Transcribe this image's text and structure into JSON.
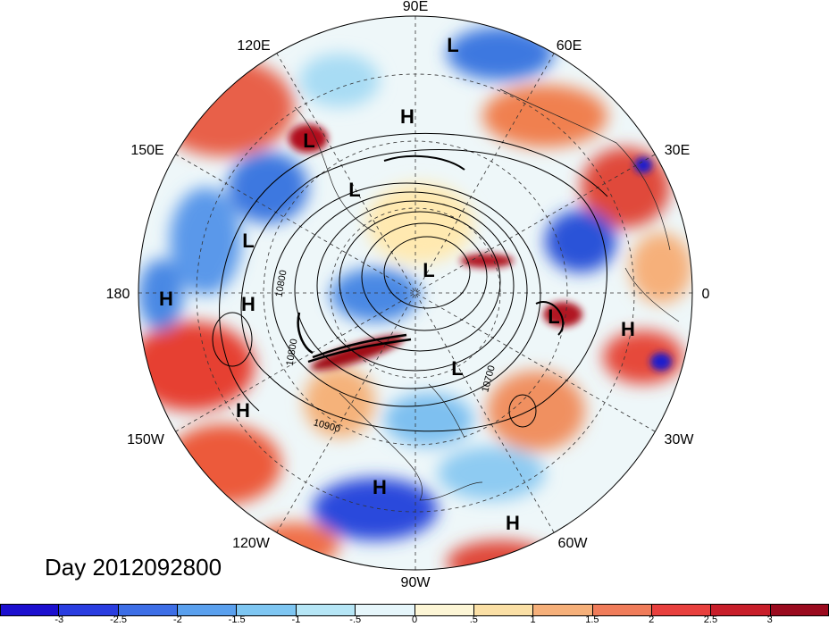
{
  "map": {
    "projection": "north-polar-stereographic",
    "lon_labels": [
      {
        "text": "90E",
        "lon": 90
      },
      {
        "text": "60E",
        "lon": 60
      },
      {
        "text": "30E",
        "lon": 30
      },
      {
        "text": "0",
        "lon": 0
      },
      {
        "text": "30W",
        "lon": -30
      },
      {
        "text": "60W",
        "lon": -60
      },
      {
        "text": "90W",
        "lon": -90
      },
      {
        "text": "120W",
        "lon": -120
      },
      {
        "text": "150W",
        "lon": -150
      },
      {
        "text": "180",
        "lon": 180
      },
      {
        "text": "150E",
        "lon": 150
      },
      {
        "text": "120E",
        "lon": 120
      }
    ],
    "pressure_centers": [
      "L",
      "H",
      "L",
      "L",
      "L",
      "H",
      "H",
      "L",
      "L",
      "H",
      "L",
      "H",
      "H",
      "H"
    ],
    "contour_labels": [
      "10800",
      "10800",
      "10900",
      "10700"
    ],
    "day_label": "Day 2012092800",
    "colors": {
      "anomaly_negative_strong": "#1a1acc",
      "anomaly_negative": "#4f8fe6",
      "anomaly_positive": "#f0603a",
      "anomaly_positive_strong": "#a00020"
    }
  },
  "colorbar": {
    "ticks": [
      "-3",
      "-2.5",
      "-2",
      "-1.5",
      "-1",
      "-.5",
      "0",
      ".5",
      "1",
      "1.5",
      "2",
      "2.5",
      "3"
    ],
    "colors": [
      "#1c0fcf",
      "#2a3de0",
      "#3d6ee6",
      "#5aa0ee",
      "#7ec6f2",
      "#b6e6f6",
      "#e6f6fb",
      "#fdf6d6",
      "#fbe0a6",
      "#f6b07a",
      "#f07c5a",
      "#e8403e",
      "#c81e2a",
      "#9a0a1e"
    ]
  }
}
